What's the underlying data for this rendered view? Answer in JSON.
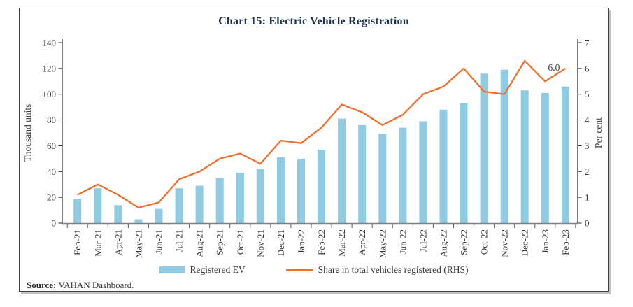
{
  "title": "Chart 15: Electric Vehicle Registration",
  "source": {
    "label": "Source:",
    "text": " VAHAN Dashboard."
  },
  "legend": {
    "bar_label": "Registered EV",
    "line_label": "Share in total vehicles registered (RHS)"
  },
  "colors": {
    "bar": "#8fcbe2",
    "line": "#f0702e",
    "title": "#1f3450",
    "axis_text": "#3a3a3a",
    "axis_line": "#262626",
    "x_axis_line": "#808080"
  },
  "chart_data": {
    "type": "bar",
    "subtype": "bar+line dual axis",
    "title": "Chart 15: Electric Vehicle Registration",
    "categories": [
      "Feb-21",
      "Mar-21",
      "Apr-21",
      "May-21",
      "Jun-21",
      "Jul-21",
      "Aug-21",
      "Sep-21",
      "Oct-21",
      "Nov-21",
      "Dec-21",
      "Jan-22",
      "Feb-22",
      "Mar-22",
      "Apr-22",
      "May-22",
      "Jun-22",
      "Jul-22",
      "Aug-22",
      "Sep-22",
      "Oct-22",
      "Nov-22",
      "Dec-22",
      "Jan-23",
      "Feb-23"
    ],
    "series": [
      {
        "name": "Registered EV",
        "type": "bar",
        "axis": "left",
        "values": [
          19,
          27,
          14,
          3,
          11,
          27,
          29,
          35,
          39,
          42,
          51,
          50,
          57,
          81,
          76,
          69,
          74,
          79,
          88,
          93,
          116,
          119,
          103,
          101,
          106
        ]
      },
      {
        "name": "Share in total vehicles registered (RHS)",
        "type": "line",
        "axis": "right",
        "values": [
          1.1,
          1.5,
          1.1,
          0.6,
          0.8,
          1.7,
          2.0,
          2.5,
          2.7,
          2.3,
          3.2,
          3.1,
          3.7,
          4.6,
          4.3,
          3.8,
          4.2,
          5.0,
          5.3,
          6.0,
          5.1,
          5.0,
          6.3,
          5.5,
          6.0
        ]
      }
    ],
    "left_axis": {
      "label": "Thousand units",
      "min": 0,
      "max": 140,
      "step": 20
    },
    "right_axis": {
      "label": "Per cent",
      "min": 0,
      "max": 7,
      "step": 1
    },
    "annotation": {
      "text": "6.0",
      "series": 1,
      "index": 24
    },
    "grid": false,
    "legend_position": "bottom"
  }
}
